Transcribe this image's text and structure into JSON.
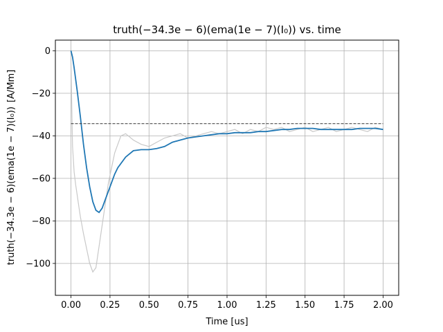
{
  "chart_data": {
    "type": "line",
    "title": "truth(−34.3e − 6)(ema(1e − 7)(I₀)) vs. time",
    "xlabel": "Time [us]",
    "ylabel": "truth(−34.3e − 6)(ema(1e − 7)(I₀))",
    "ylabel_unit": "[A/Mm]",
    "xlim": [
      -0.1,
      2.1
    ],
    "ylim": [
      -115,
      5
    ],
    "grid": true,
    "x_ticks": [
      0.0,
      0.25,
      0.5,
      0.75,
      1.0,
      1.25,
      1.5,
      1.75,
      2.0
    ],
    "x_tick_labels": [
      "0.00",
      "0.25",
      "0.50",
      "0.75",
      "1.00",
      "1.25",
      "1.50",
      "1.75",
      "2.00"
    ],
    "y_ticks": [
      0,
      -20,
      -40,
      -60,
      -80,
      -100
    ],
    "y_tick_labels": [
      "0",
      "−20",
      "−40",
      "−60",
      "−80",
      "−100"
    ],
    "series": [
      {
        "role": "raw",
        "color": "#c8c8c8",
        "x": [
          0.0,
          0.01,
          0.02,
          0.03,
          0.04,
          0.05,
          0.06,
          0.08,
          0.1,
          0.12,
          0.14,
          0.16,
          0.18,
          0.2,
          0.22,
          0.24,
          0.26,
          0.28,
          0.3,
          0.32,
          0.35,
          0.4,
          0.45,
          0.5,
          0.55,
          0.6,
          0.65,
          0.7,
          0.75,
          0.8,
          0.85,
          0.9,
          0.95,
          1.0,
          1.05,
          1.1,
          1.15,
          1.2,
          1.25,
          1.3,
          1.35,
          1.4,
          1.45,
          1.5,
          1.55,
          1.6,
          1.65,
          1.7,
          1.75,
          1.8,
          1.85,
          1.9,
          1.95,
          2.0
        ],
        "y": [
          -5,
          -45,
          -57,
          -63,
          -68,
          -73,
          -78,
          -86,
          -93,
          -100,
          -104,
          -102,
          -92,
          -82,
          -72,
          -62,
          -55,
          -48,
          -44,
          -40,
          -39,
          -42,
          -44,
          -45,
          -43,
          -41,
          -40,
          -39,
          -41,
          -40,
          -39,
          -38,
          -39,
          -38,
          -37,
          -39,
          -37,
          -38,
          -36,
          -37,
          -36,
          -38,
          -37,
          -36,
          -38,
          -37,
          -36,
          -38,
          -37,
          -36,
          -37,
          -38,
          -36,
          -37
        ]
      },
      {
        "role": "ema",
        "color": "#1f77b4",
        "x": [
          0.0,
          0.01,
          0.02,
          0.04,
          0.06,
          0.08,
          0.1,
          0.12,
          0.14,
          0.16,
          0.18,
          0.2,
          0.22,
          0.25,
          0.28,
          0.3,
          0.35,
          0.4,
          0.45,
          0.5,
          0.55,
          0.6,
          0.65,
          0.7,
          0.75,
          0.8,
          0.85,
          0.9,
          0.95,
          1.0,
          1.05,
          1.1,
          1.15,
          1.2,
          1.25,
          1.3,
          1.35,
          1.4,
          1.45,
          1.5,
          1.55,
          1.6,
          1.65,
          1.7,
          1.75,
          1.8,
          1.85,
          1.9,
          1.95,
          2.0
        ],
        "y": [
          0,
          -3,
          -8,
          -19,
          -31,
          -44,
          -55,
          -64,
          -71,
          -75,
          -76,
          -74,
          -70,
          -64,
          -58,
          -55,
          -50,
          -47,
          -46.5,
          -46.5,
          -46,
          -45,
          -43,
          -42,
          -41,
          -40.5,
          -40,
          -39.5,
          -39,
          -39,
          -38.5,
          -38.5,
          -38.5,
          -38,
          -38,
          -37.5,
          -37,
          -37,
          -36.5,
          -36.5,
          -36.5,
          -37,
          -37,
          -37,
          -37,
          -37,
          -36.5,
          -36.5,
          -36.5,
          -37
        ]
      },
      {
        "role": "reference",
        "color": "#333333",
        "style": "dashed",
        "x": [
          0.0,
          2.0
        ],
        "y": [
          -34.3,
          -34.3
        ]
      }
    ]
  }
}
